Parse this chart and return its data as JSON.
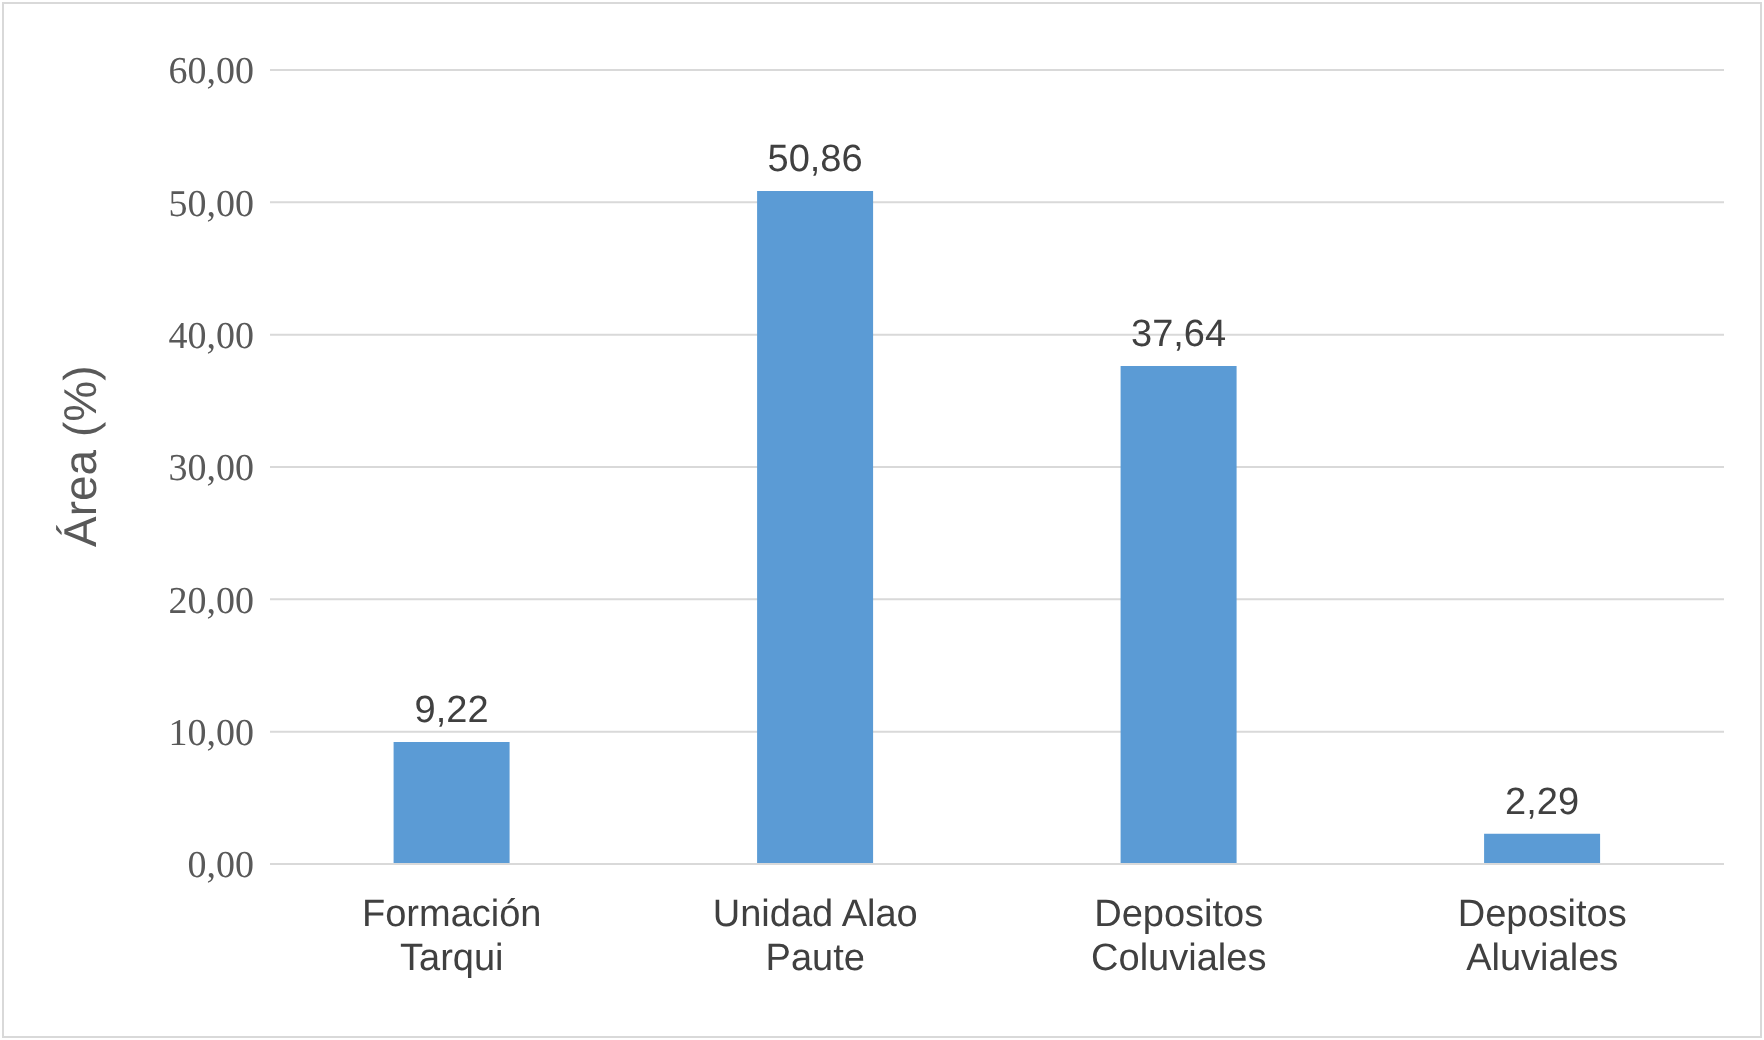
{
  "chart_data": {
    "type": "bar",
    "ylabel": "Área (%)",
    "categories": [
      "Formación Tarqui",
      "Unidad Alao Paute",
      "Depositos Coluviales",
      "Depositos Aluviales"
    ],
    "values": [
      9.22,
      50.86,
      37.64,
      2.29
    ],
    "value_labels": [
      "9,22",
      "50,86",
      "37,64",
      "2,29"
    ],
    "color": "#5b9bd5",
    "ylim": [
      0,
      60
    ],
    "yticks": [
      {
        "value": 0,
        "label": "0,00"
      },
      {
        "value": 10,
        "label": "10,00"
      },
      {
        "value": 20,
        "label": "20,00"
      },
      {
        "value": 30,
        "label": "30,00"
      },
      {
        "value": 40,
        "label": "40,00"
      },
      {
        "value": 50,
        "label": "50,00"
      },
      {
        "value": 60,
        "label": "60,00"
      }
    ],
    "grid": "y"
  }
}
